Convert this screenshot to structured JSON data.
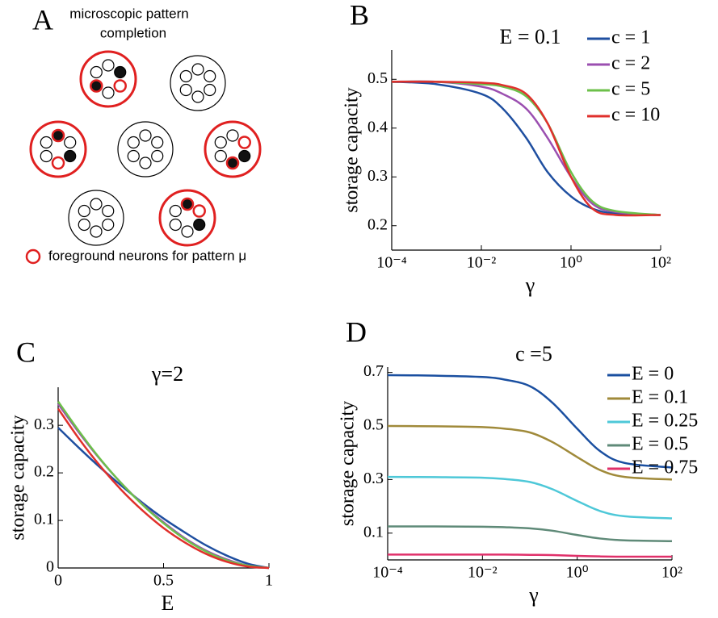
{
  "diagram": {
    "label": "A",
    "title": [
      "microscopic pattern",
      "completion"
    ],
    "legend": "foreground neurons for pattern μ"
  },
  "chart_data": [
    {
      "type": "line",
      "panel_label": "B",
      "title": "E = 0.1",
      "x_label": "γ",
      "y_label": "storage capacity",
      "xscale": "log",
      "xlim": [
        0.0001,
        100
      ],
      "xticks": [
        {
          "value": 0.0001,
          "label": "10⁻⁴"
        },
        {
          "value": 0.01,
          "label": "10⁻²"
        },
        {
          "value": 1,
          "label": "10⁰"
        },
        {
          "value": 100,
          "label": "10²"
        }
      ],
      "ylim": [
        0.15,
        0.56
      ],
      "yticks": [
        0.2,
        0.3,
        0.4,
        0.5
      ],
      "legend": "upper right",
      "x": [
        0.0001,
        0.001,
        0.01,
        0.03,
        0.1,
        0.3,
        1,
        3,
        10,
        100
      ],
      "series": [
        {
          "name": "c = 1",
          "color": "#1f4fa0",
          "values": [
            0.495,
            0.49,
            0.47,
            0.44,
            0.38,
            0.31,
            0.26,
            0.235,
            0.225,
            0.222
          ]
        },
        {
          "name": "c = 2",
          "color": "#9b4fb0",
          "values": [
            0.495,
            0.495,
            0.485,
            0.47,
            0.44,
            0.38,
            0.3,
            0.245,
            0.228,
            0.222
          ]
        },
        {
          "name": "c = 5",
          "color": "#6cc04a",
          "values": [
            0.495,
            0.495,
            0.49,
            0.485,
            0.465,
            0.41,
            0.31,
            0.25,
            0.23,
            0.222
          ]
        },
        {
          "name": "c = 10",
          "color": "#e0302c",
          "values": [
            0.495,
            0.495,
            0.493,
            0.488,
            0.47,
            0.41,
            0.3,
            0.235,
            0.222,
            0.222
          ]
        }
      ]
    },
    {
      "type": "line",
      "panel_label": "C",
      "title": "γ=2",
      "x_label": "E",
      "y_label": "storage capacity",
      "xlim": [
        0,
        1
      ],
      "xticks": [
        0,
        0.5,
        1
      ],
      "ylim": [
        0,
        0.38
      ],
      "yticks": [
        0,
        0.1,
        0.2,
        0.3
      ],
      "x": [
        0,
        0.1,
        0.2,
        0.3,
        0.4,
        0.5,
        0.6,
        0.7,
        0.8,
        0.9,
        1
      ],
      "series": [
        {
          "color": "#1f4fa0",
          "values": [
            0.295,
            0.252,
            0.211,
            0.173,
            0.137,
            0.104,
            0.075,
            0.048,
            0.026,
            0.009,
            0
          ]
        },
        {
          "color": "#9b4fb0",
          "values": [
            0.345,
            0.284,
            0.228,
            0.178,
            0.134,
            0.096,
            0.063,
            0.037,
            0.018,
            0.005,
            0
          ]
        },
        {
          "color": "#6cc04a",
          "values": [
            0.35,
            0.287,
            0.229,
            0.178,
            0.133,
            0.094,
            0.061,
            0.035,
            0.016,
            0.005,
            0
          ]
        },
        {
          "color": "#e0302c",
          "values": [
            0.335,
            0.271,
            0.214,
            0.164,
            0.121,
            0.084,
            0.054,
            0.03,
            0.013,
            0.003,
            0
          ]
        }
      ]
    },
    {
      "type": "line",
      "panel_label": "D",
      "title": "c =5",
      "x_label": "γ",
      "y_label": "storage capacity",
      "xscale": "log",
      "xlim": [
        0.0001,
        100
      ],
      "xticks": [
        {
          "value": 0.0001,
          "label": "10⁻⁴"
        },
        {
          "value": 0.01,
          "label": "10⁻²"
        },
        {
          "value": 1,
          "label": "10⁰"
        },
        {
          "value": 100,
          "label": "10²"
        }
      ],
      "ylim": [
        0,
        0.72
      ],
      "yticks": [
        0.1,
        0.3,
        0.5,
        0.7
      ],
      "legend": "upper right",
      "x": [
        0.0001,
        0.001,
        0.01,
        0.03,
        0.1,
        0.3,
        1,
        3,
        10,
        100
      ],
      "series": [
        {
          "name": "E = 0",
          "color": "#1a4fa0",
          "values": [
            0.69,
            0.688,
            0.683,
            0.673,
            0.649,
            0.587,
            0.49,
            0.407,
            0.362,
            0.345
          ]
        },
        {
          "name": "E = 0.1",
          "color": "#a08a3a",
          "values": [
            0.5,
            0.499,
            0.496,
            0.49,
            0.476,
            0.44,
            0.384,
            0.336,
            0.31,
            0.3
          ]
        },
        {
          "name": "E = 0.25",
          "color": "#4ec8d8",
          "values": [
            0.31,
            0.309,
            0.307,
            0.302,
            0.291,
            0.264,
            0.22,
            0.183,
            0.163,
            0.155
          ]
        },
        {
          "name": "E = 0.5",
          "color": "#5f8a78",
          "values": [
            0.125,
            0.125,
            0.124,
            0.122,
            0.118,
            0.109,
            0.093,
            0.08,
            0.073,
            0.07
          ]
        },
        {
          "name": "E = 0.75",
          "color": "#e0306a",
          "values": [
            0.02,
            0.02,
            0.02,
            0.02,
            0.019,
            0.018,
            0.015,
            0.013,
            0.012,
            0.012
          ]
        }
      ]
    }
  ]
}
